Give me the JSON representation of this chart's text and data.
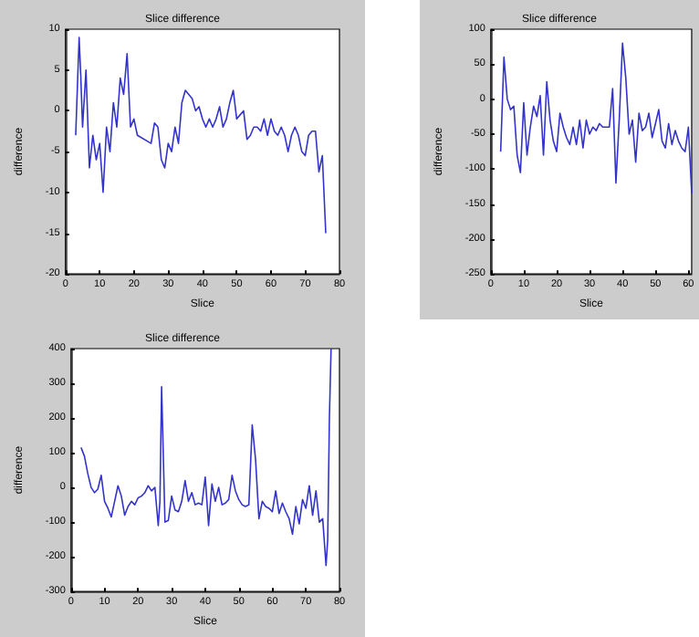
{
  "chart_data": [
    {
      "type": "line",
      "title": "Slice difference",
      "xlabel": "Slice",
      "ylabel": "difference",
      "xlim": [
        0,
        80
      ],
      "xticks": [
        0,
        10,
        20,
        30,
        40,
        50,
        60,
        70,
        80
      ],
      "ylim": [
        -20,
        10
      ],
      "yticks": [
        -20,
        -15,
        -10,
        -5,
        0,
        5,
        10
      ],
      "grid": false,
      "marker": "none",
      "line_style": "solid",
      "series": [
        {
          "color": "#3333cc",
          "x": [
            3,
            3.5,
            4,
            4.5,
            5,
            6,
            7,
            8,
            9,
            10,
            11,
            12,
            13,
            14,
            15,
            16,
            17,
            18,
            19,
            20,
            21,
            25,
            26,
            27,
            28,
            29,
            30,
            31,
            32,
            33,
            34,
            35,
            37,
            38,
            39,
            40,
            41,
            42,
            43,
            44,
            45,
            46,
            47,
            48,
            49,
            50,
            51,
            52,
            53,
            54,
            55,
            56,
            57,
            58,
            59,
            60,
            61,
            62,
            63,
            64,
            65,
            66,
            67,
            68,
            69,
            70,
            71,
            72,
            73,
            74,
            75,
            76
          ],
          "values": [
            -3,
            3,
            9,
            4,
            -2,
            5,
            -7,
            -3,
            -6,
            -4,
            -10,
            -2,
            -5,
            1,
            -2,
            4,
            2,
            7,
            -2,
            -1,
            -3,
            -4,
            -1.5,
            -2,
            -6,
            -7,
            -4,
            -5,
            -2,
            -4,
            1,
            2.5,
            1.5,
            0,
            0.5,
            -1,
            -2,
            -1,
            -2,
            -1,
            0.5,
            -2,
            -1,
            1,
            2.5,
            -1,
            -0.5,
            0,
            -3.5,
            -3,
            -2,
            -2,
            -2.5,
            -1,
            -3,
            -1,
            -2.5,
            -3,
            -2,
            -3,
            -5,
            -3,
            -2,
            -3,
            -5,
            -5.5,
            -3,
            -2.5,
            -2.5,
            -7.5,
            -5.5,
            -15
          ]
        }
      ]
    },
    {
      "type": "line",
      "title": "Slice difference",
      "xlabel": "Slice",
      "ylabel": "difference",
      "xlim": [
        0,
        61
      ],
      "xticks": [
        0,
        10,
        20,
        30,
        40,
        50,
        60
      ],
      "ylim": [
        -250,
        100
      ],
      "yticks": [
        -250,
        -200,
        -150,
        -100,
        -50,
        0,
        50,
        100
      ],
      "grid": false,
      "marker": "none",
      "line_style": "solid",
      "series": [
        {
          "color": "#3333cc",
          "x": [
            3,
            4,
            5,
            6,
            7,
            8,
            9,
            10,
            11,
            12,
            13,
            14,
            15,
            16,
            17,
            18,
            19,
            20,
            21,
            22,
            23,
            24,
            25,
            26,
            27,
            28,
            29,
            30,
            31,
            32,
            33,
            34,
            35,
            36,
            37,
            38,
            39,
            40,
            41,
            42,
            43,
            44,
            45,
            46,
            47,
            48,
            49,
            50,
            51,
            52,
            53,
            54,
            55,
            56,
            57,
            58,
            59,
            60,
            61
          ],
          "values": [
            -75,
            60,
            0,
            -15,
            -10,
            -80,
            -105,
            -5,
            -80,
            -40,
            -10,
            -25,
            5,
            -80,
            25,
            -30,
            -60,
            -75,
            -20,
            -40,
            -55,
            -65,
            -40,
            -65,
            -30,
            -70,
            -30,
            -50,
            -40,
            -45,
            -35,
            -40,
            -40,
            -40,
            15,
            -120,
            -30,
            80,
            30,
            -50,
            -30,
            -90,
            -20,
            -45,
            -40,
            -20,
            -55,
            -35,
            -15,
            -60,
            -70,
            -35,
            -65,
            -45,
            -60,
            -70,
            -75,
            -40,
            -135
          ]
        }
      ]
    },
    {
      "type": "line",
      "title": "Slice difference",
      "xlabel": "Slice",
      "ylabel": "difference",
      "xlim": [
        0,
        80
      ],
      "xticks": [
        0,
        10,
        20,
        30,
        40,
        50,
        60,
        70,
        80
      ],
      "ylim": [
        -300,
        400
      ],
      "yticks": [
        -300,
        -200,
        -100,
        0,
        100,
        200,
        300,
        400
      ],
      "grid": false,
      "marker": "none",
      "line_style": "solid",
      "series": [
        {
          "color": "#3333cc",
          "x": [
            3,
            4,
            5,
            6,
            7,
            8,
            9,
            10,
            11,
            12,
            13,
            14,
            15,
            16,
            17,
            18,
            19,
            20,
            21,
            22,
            23,
            24,
            25,
            26,
            26.5,
            27,
            28,
            29,
            30,
            31,
            32,
            33,
            34,
            35,
            36,
            37,
            38,
            39,
            40,
            41,
            42,
            43,
            44,
            45,
            46,
            47,
            48,
            49,
            50,
            51,
            52,
            53,
            54,
            55,
            56,
            57,
            58,
            59,
            60,
            61,
            62,
            63,
            64,
            65,
            66,
            67,
            68,
            69,
            70,
            71,
            72,
            73,
            74,
            75,
            76,
            76.5,
            77,
            77.5
          ],
          "values": [
            115,
            90,
            40,
            0,
            -15,
            -5,
            35,
            -40,
            -60,
            -85,
            -40,
            5,
            -25,
            -80,
            -55,
            -40,
            -50,
            -30,
            -25,
            -15,
            5,
            -10,
            0,
            -110,
            -40,
            290,
            -100,
            -95,
            -25,
            -65,
            -70,
            -40,
            20,
            -40,
            -15,
            -50,
            -45,
            -50,
            30,
            -110,
            10,
            -40,
            0,
            -50,
            -45,
            -35,
            35,
            -10,
            -35,
            -50,
            -55,
            -50,
            180,
            80,
            -90,
            -40,
            -55,
            -60,
            -70,
            -10,
            -75,
            -45,
            -70,
            -90,
            -135,
            -55,
            -105,
            -35,
            -60,
            5,
            -80,
            -10,
            -100,
            -90,
            -225,
            -150,
            200,
            400
          ]
        }
      ]
    }
  ]
}
